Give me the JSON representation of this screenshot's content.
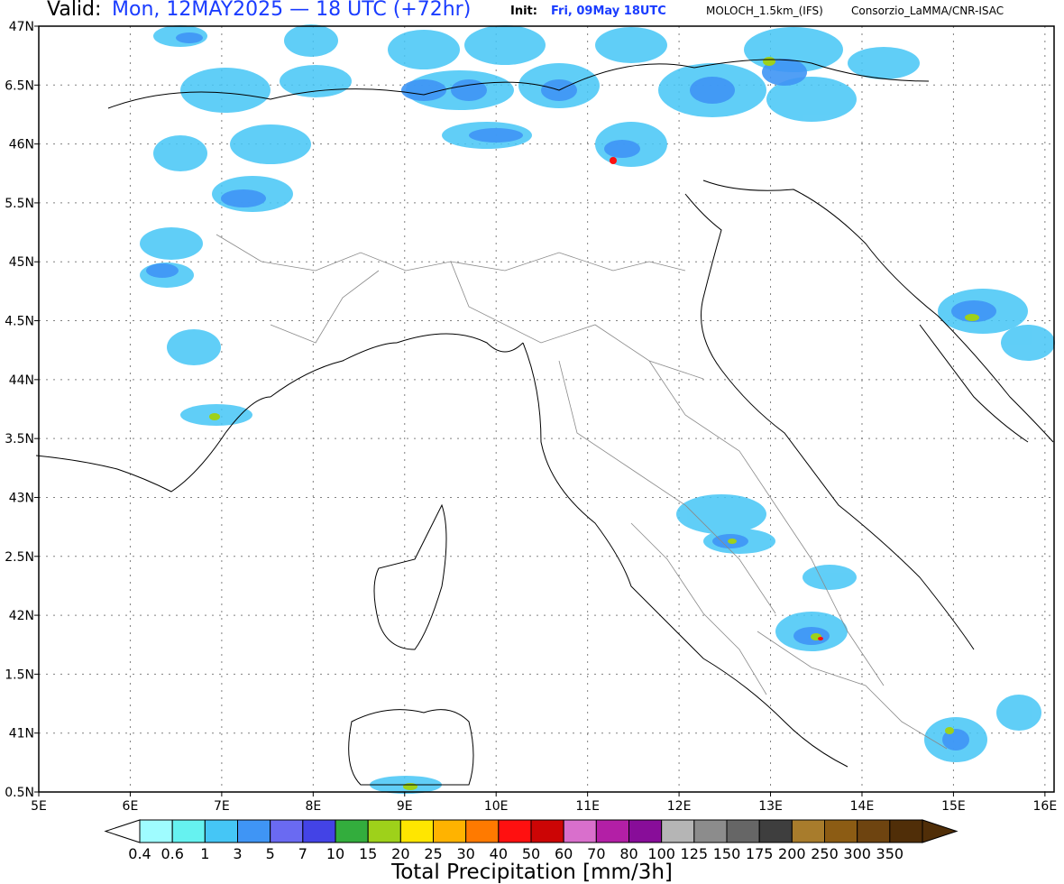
{
  "header": {
    "valid_label": "Valid:",
    "valid_value": "Mon, 12MAY2025 — 18 UTC (+72hr)",
    "init_label": "Init:",
    "init_value": "Fri, 09May 18UTC",
    "model": "MOLOCH_1.5km_(IFS)",
    "consortium": "Consorzio_LaMMA/CNR-ISAC"
  },
  "map": {
    "lat_labels": [
      "47N",
      "6.5N",
      "46N",
      "5.5N",
      "45N",
      "4.5N",
      "44N",
      "3.5N",
      "43N",
      "2.5N",
      "42N",
      "1.5N",
      "41N",
      "0.5N"
    ],
    "lon_labels": [
      "5E",
      "6E",
      "7E",
      "8E",
      "9E",
      "10E",
      "11E",
      "12E",
      "13E",
      "14E",
      "15E",
      "16E"
    ],
    "lat_range": [
      40.5,
      47
    ],
    "lon_range": [
      5,
      16.1
    ]
  },
  "colorbar": {
    "title": "Total Precipitation [mm/3h]",
    "labels": [
      "0.4",
      "0.6",
      "1",
      "3",
      "5",
      "7",
      "10",
      "15",
      "20",
      "25",
      "30",
      "40",
      "50",
      "60",
      "70",
      "80",
      "100",
      "125",
      "150",
      "175",
      "200",
      "250",
      "300",
      "350"
    ],
    "colors": [
      "#9ffcff",
      "#66f2f0",
      "#45c6f6",
      "#3f95f5",
      "#6a6af2",
      "#4343e6",
      "#33ad3d",
      "#9ed11a",
      "#ffe600",
      "#ffb300",
      "#ff7a00",
      "#ff1010",
      "#cc0505",
      "#d96fcc",
      "#b31fa6",
      "#880d99",
      "#b5b5b5",
      "#8c8c8c",
      "#666666",
      "#3e3e3e",
      "#a87c2c",
      "#8c5c14",
      "#6e4410",
      "#502e08"
    ]
  }
}
